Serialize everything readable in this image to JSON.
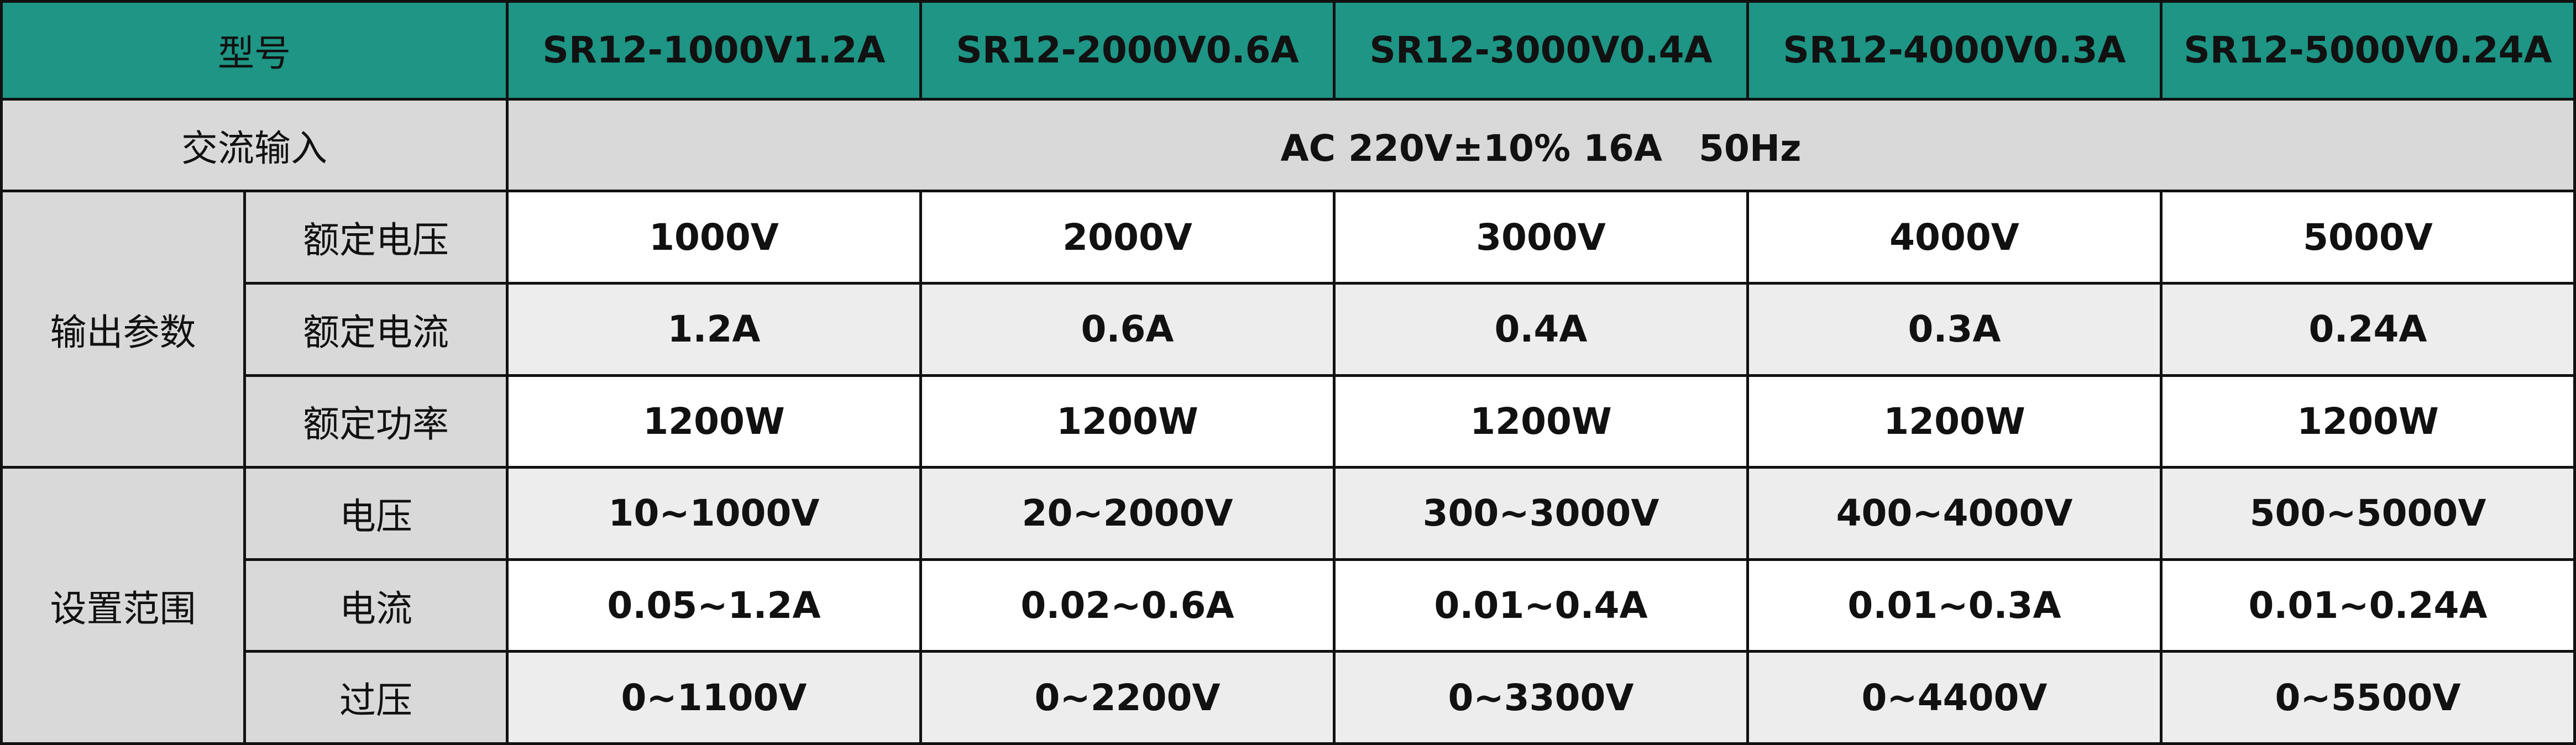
{
  "table": {
    "header": [
      "型号",
      "SR12-1000V1.2A",
      "SR12-2000V0.6A",
      "SR12-3000V0.4A",
      "SR12-4000V0.3A",
      "SR12-5000V0.24A"
    ],
    "ac_input": {
      "label": "交流输入",
      "value": "AC 220V±10% 16A　50Hz"
    },
    "groups": [
      {
        "label": "输出参数",
        "rows": [
          {
            "label": "额定电压",
            "values": [
              "1000V",
              "2000V",
              "3000V",
              "4000V",
              "5000V"
            ]
          },
          {
            "label": "额定电流",
            "values": [
              "1.2A",
              "0.6A",
              "0.4A",
              "0.3A",
              "0.24A"
            ]
          },
          {
            "label": "额定功率",
            "values": [
              "1200W",
              "1200W",
              "1200W",
              "1200W",
              "1200W"
            ]
          }
        ]
      },
      {
        "label": "设置范围",
        "rows": [
          {
            "label": "电压",
            "values": [
              "10~1000V",
              "20~2000V",
              "300~3000V",
              "400~4000V",
              "500~5000V"
            ]
          },
          {
            "label": "电流",
            "values": [
              "0.05~1.2A",
              "0.02~0.6A",
              "0.01~0.4A",
              "0.01~0.3A",
              "0.01~0.24A"
            ]
          },
          {
            "label": "过压",
            "values": [
              "0~1100V",
              "0~2200V",
              "0~3300V",
              "0~4400V",
              "0~5500V"
            ]
          }
        ]
      }
    ]
  }
}
